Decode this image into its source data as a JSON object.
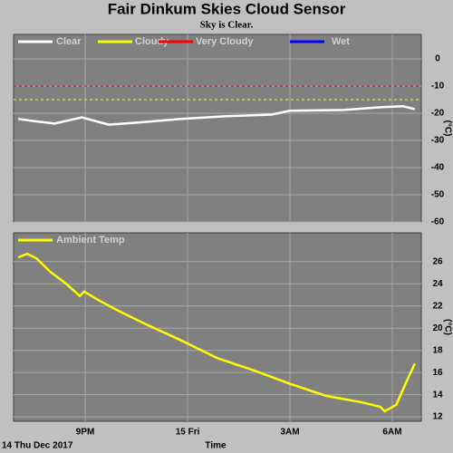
{
  "title": "Fair Dinkum Skies Cloud Sensor",
  "subtitle": "Sky is Clear.",
  "xaxis": {
    "label": "Time",
    "date": "14 Thu Dec 2017",
    "xlim": [
      18.9,
      30.85
    ],
    "xticks": [
      {
        "value": 21,
        "label": "9PM"
      },
      {
        "value": 24,
        "label": "15 Fri"
      },
      {
        "value": 27,
        "label": "3AM"
      },
      {
        "value": 30,
        "label": "6AM"
      }
    ]
  },
  "chart_data": [
    {
      "type": "line",
      "y_label": "(°C)",
      "ylim": [
        -60,
        9
      ],
      "yticks": [
        0,
        -10,
        -20,
        -30,
        -40,
        -50,
        -60
      ],
      "grid": true,
      "x": [
        19.04,
        19.44,
        20.1,
        20.9,
        21.69,
        22.75,
        23.81,
        25.14,
        26.46,
        26.99,
        28.58,
        29.65,
        30.31,
        30.66
      ],
      "series": [
        {
          "name": "Clear",
          "color": "#ffffff",
          "values": [
            -22.1,
            -22.8,
            -23.8,
            -21.5,
            -24.2,
            -23.2,
            -22.1,
            -21.1,
            -20.5,
            -19.1,
            -18.8,
            -17.8,
            -17.4,
            -18.5
          ]
        },
        {
          "name": "Cloudy",
          "color": "#ffff00",
          "threshold": -15
        },
        {
          "name": "Very Cloudy",
          "color": "#ff0000",
          "threshold": -10
        },
        {
          "name": "Wet",
          "color": "#0000ff"
        }
      ]
    },
    {
      "type": "line",
      "y_label": "(°C)",
      "ylim": [
        11.6,
        28.6
      ],
      "yticks": [
        12,
        14,
        16,
        18,
        20,
        22,
        24,
        26
      ],
      "grid": true,
      "x": [
        19.04,
        19.3,
        19.57,
        19.97,
        20.36,
        20.63,
        20.84,
        20.97,
        21.29,
        21.95,
        22.75,
        23.81,
        24.87,
        25.93,
        26.99,
        28.05,
        29.12,
        29.65,
        29.78,
        30.12,
        30.39,
        30.66
      ],
      "series": [
        {
          "name": "Ambient Temp",
          "color": "#ffff00",
          "values": [
            26.4,
            26.7,
            26.3,
            25.1,
            24.2,
            23.5,
            22.9,
            23.3,
            22.7,
            21.6,
            20.4,
            18.9,
            17.3,
            16.2,
            15.0,
            13.9,
            13.3,
            12.9,
            12.5,
            13.1,
            15.0,
            16.8
          ]
        }
      ]
    }
  ]
}
